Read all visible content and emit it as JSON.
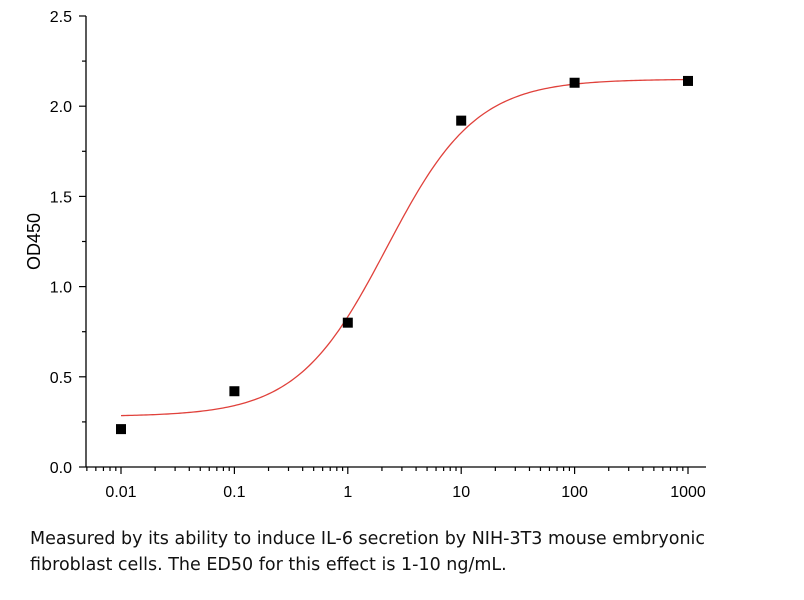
{
  "chart_data": {
    "type": "scatter",
    "title": "",
    "xlabel": "",
    "ylabel": "OD450",
    "x_scale": "log",
    "xlim": [
      0.01,
      1000
    ],
    "ylim": [
      0.0,
      2.5
    ],
    "x_ticks": [
      0.01,
      0.1,
      1,
      10,
      100,
      1000
    ],
    "x_tick_labels": [
      "0.01",
      "0.1",
      "1",
      "10",
      "100",
      "1000"
    ],
    "y_ticks": [
      0.0,
      0.5,
      1.0,
      1.5,
      2.0,
      2.5
    ],
    "y_tick_labels": [
      "0.0",
      "0.5",
      "1.0",
      "1.5",
      "2.0",
      "2.5"
    ],
    "grid": false,
    "points": {
      "x": [
        0.01,
        0.1,
        1,
        10,
        100,
        1000
      ],
      "y": [
        0.21,
        0.42,
        0.8,
        1.92,
        2.13,
        2.14
      ],
      "color": "#000000",
      "marker": "square"
    },
    "fit": {
      "type": "four-parameter logistic",
      "bottom": 0.28,
      "top": 2.15,
      "ec50": 2.2,
      "hill": 1.1,
      "color": "#e0413b"
    }
  },
  "caption": {
    "line1": "Measured by its ability to induce IL-6 secretion by NIH-3T3 mouse embryonic",
    "line2": "fibroblast cells. The ED50 for this effect is 1-10 ng/mL."
  }
}
